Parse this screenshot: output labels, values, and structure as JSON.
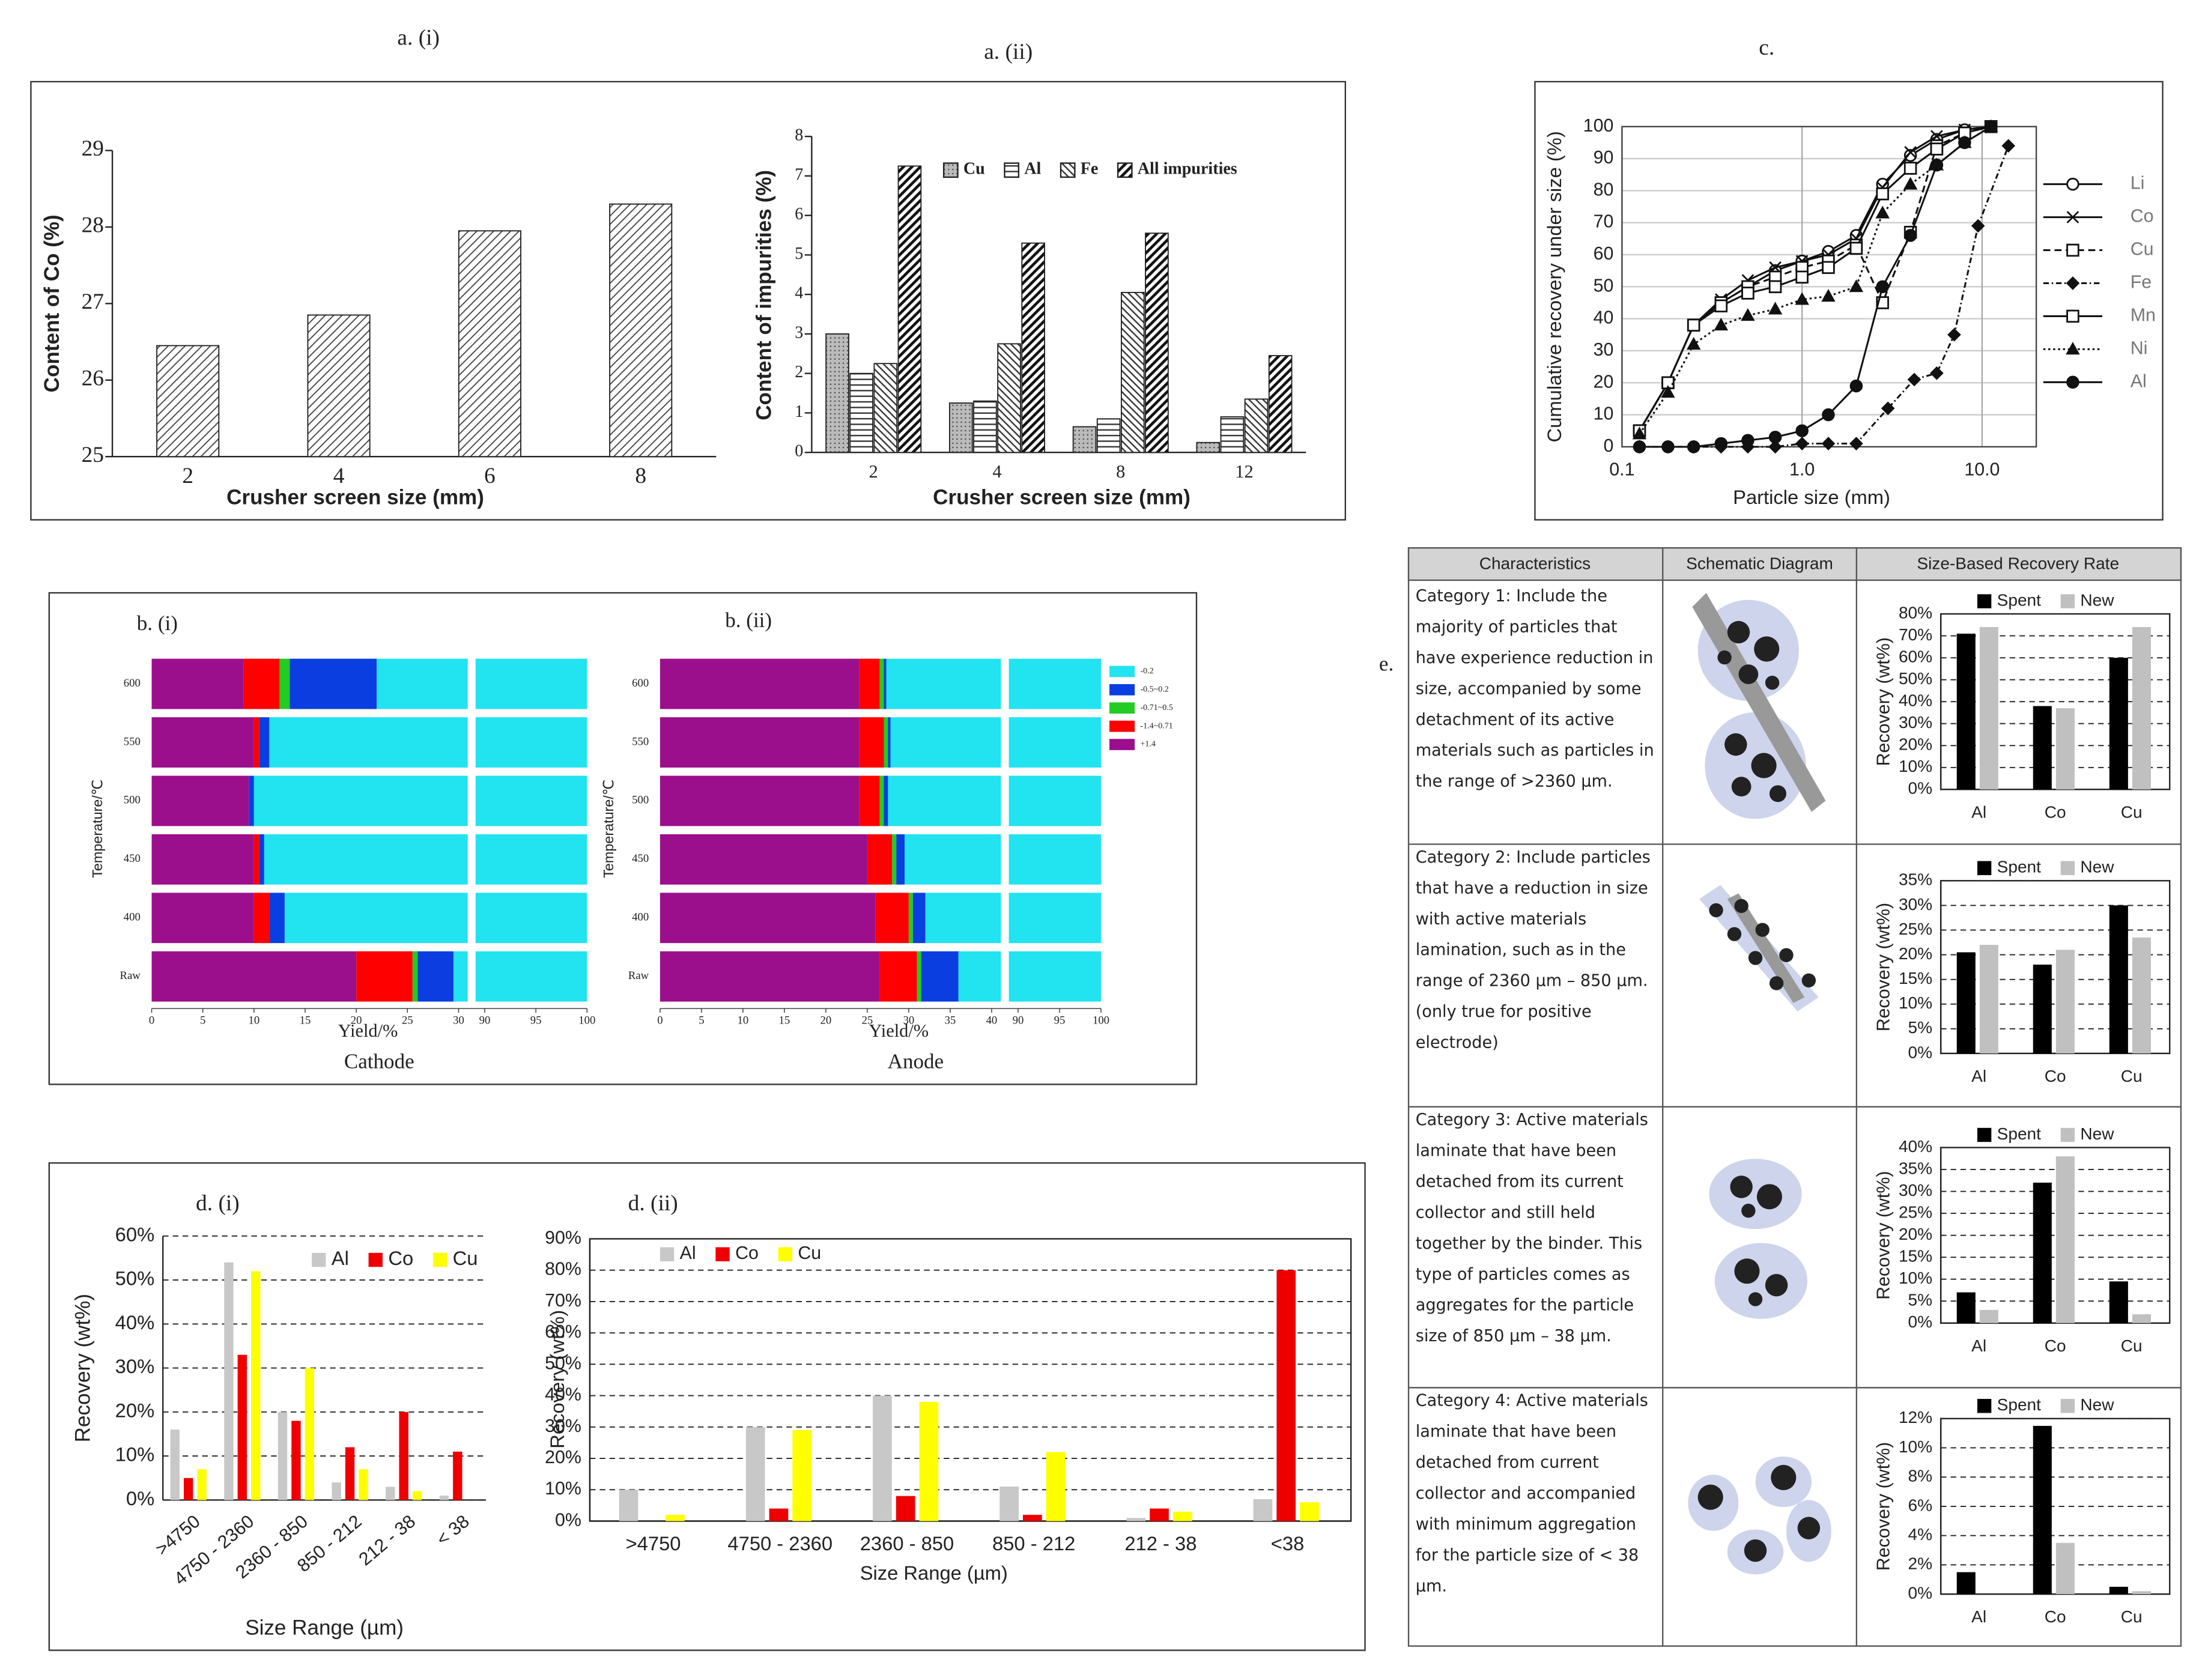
{
  "chart_data": [
    {
      "type": "bar",
      "title": "a.  (i)",
      "x_label": "Crusher screen size (mm)",
      "y_label": "Content of Co (%)",
      "categories": [
        "2",
        "4",
        "6",
        "8"
      ],
      "values": [
        26.45,
        26.85,
        27.95,
        28.3
      ],
      "hatch": "diag",
      "ylim": [
        25,
        29
      ],
      "yticks": [
        25,
        26,
        27,
        28,
        29
      ],
      "grid": false
    },
    {
      "type": "bar",
      "title": "a.  (ii)",
      "x_label": "Crusher screen size (mm)",
      "y_label": "Content of impurities (%)",
      "categories": [
        "2",
        "4",
        "8",
        "12"
      ],
      "series": [
        {
          "name": "Cu",
          "hatch": "dots",
          "values": [
            3.0,
            1.25,
            0.65,
            0.25
          ]
        },
        {
          "name": "Al",
          "hatch": "horiz",
          "values": [
            2.0,
            1.3,
            0.85,
            0.9
          ]
        },
        {
          "name": "Fe",
          "hatch": "back",
          "values": [
            2.25,
            2.75,
            4.05,
            1.35
          ]
        },
        {
          "name": "All impurities",
          "hatch": "bold",
          "values": [
            7.25,
            5.3,
            5.55,
            2.45
          ]
        }
      ],
      "ylim": [
        0,
        8
      ],
      "yticks": [
        0,
        1,
        2,
        3,
        4,
        5,
        6,
        7,
        8
      ],
      "grid": false,
      "legend": "top"
    },
    {
      "type": "line",
      "title": "c.",
      "x_label": "Particle size (mm)",
      "y_label": "Cumulative recovery under size (%)",
      "xscale": "log",
      "xlim": [
        0.1,
        20
      ],
      "xticks": [
        {
          "value": 0.1,
          "label": "0.1"
        },
        {
          "value": 1,
          "label": "1.0"
        },
        {
          "value": 10,
          "label": "10.0"
        }
      ],
      "ylim": [
        0,
        100
      ],
      "yticks": [
        0,
        10,
        20,
        30,
        40,
        50,
        60,
        70,
        80,
        90,
        100
      ],
      "grid": true,
      "legend": "right",
      "series": [
        {
          "name": "Li",
          "marker": "circle-open",
          "line": "solid",
          "x": [
            0.125,
            0.18,
            0.25,
            0.355,
            0.5,
            0.71,
            1.0,
            1.4,
            2.0,
            2.8,
            4.0,
            5.6,
            8.0,
            11.2
          ],
          "values": [
            5,
            20,
            38,
            45,
            50,
            55,
            58,
            61,
            66,
            82,
            91,
            96,
            99,
            100
          ]
        },
        {
          "name": "Co",
          "marker": "cross",
          "line": "solid",
          "x": [
            0.125,
            0.18,
            0.25,
            0.355,
            0.5,
            0.71,
            1.0,
            1.4,
            2.0,
            2.8,
            4.0,
            5.6,
            8.0,
            11.2
          ],
          "values": [
            5,
            20,
            38,
            46,
            52,
            56,
            58,
            60,
            65,
            81,
            92,
            97,
            99,
            100
          ]
        },
        {
          "name": "Cu",
          "marker": "square-open",
          "line": "dashed",
          "x": [
            0.125,
            0.18,
            0.25,
            0.355,
            0.5,
            0.71,
            1.0,
            1.4,
            2.0,
            2.8,
            4.0,
            5.6,
            8.0,
            11.2
          ],
          "values": [
            5,
            20,
            38,
            45,
            50,
            53,
            56,
            58,
            63,
            45,
            67,
            94,
            98,
            100
          ]
        },
        {
          "name": "Fe",
          "marker": "diamond",
          "line": "dashdot",
          "x": [
            0.125,
            0.18,
            0.25,
            0.355,
            0.5,
            0.71,
            1.0,
            1.4,
            2.0,
            3.0,
            4.2,
            5.6,
            7.0,
            9.5,
            14.0
          ],
          "values": [
            0,
            0,
            0,
            0,
            0,
            0,
            1,
            1,
            1,
            12,
            21,
            23,
            35,
            69,
            94
          ]
        },
        {
          "name": "Mn",
          "marker": "square-open",
          "line": "solid",
          "x": [
            0.125,
            0.18,
            0.25,
            0.355,
            0.5,
            0.71,
            1.0,
            1.4,
            2.0,
            2.8,
            4.0,
            5.6,
            8.0,
            11.2
          ],
          "values": [
            5,
            20,
            38,
            44,
            48,
            50,
            53,
            56,
            62,
            79,
            87,
            93,
            98,
            100
          ]
        },
        {
          "name": "Ni",
          "marker": "triangle",
          "line": "dotted",
          "x": [
            0.125,
            0.18,
            0.25,
            0.355,
            0.5,
            0.71,
            1.0,
            1.4,
            2.0,
            2.8,
            4.0,
            5.6,
            8.0,
            11.2
          ],
          "values": [
            4,
            17,
            32,
            38,
            41,
            43,
            46,
            47,
            50,
            73,
            82,
            88,
            95,
            100
          ]
        },
        {
          "name": "Al",
          "marker": "circle",
          "line": "solid",
          "x": [
            0.125,
            0.18,
            0.25,
            0.355,
            0.5,
            0.71,
            1.0,
            1.4,
            2.0,
            2.8,
            4.0,
            5.6,
            8.0,
            11.2
          ],
          "values": [
            0,
            0,
            0,
            1,
            2,
            3,
            5,
            10,
            19,
            50,
            66,
            88,
            95,
            100
          ]
        }
      ]
    },
    {
      "type": "stacked_barh",
      "title": "b. (i)",
      "x_label": "Yield/%",
      "y_label": "Temperature/℃",
      "caption": "Cathode",
      "categories": [
        "600",
        "550",
        "500",
        "450",
        "400",
        "Raw"
      ],
      "xlim": [
        0,
        100
      ],
      "xbreak": [
        30,
        90
      ],
      "xticks": [
        0,
        5,
        10,
        15,
        20,
        25,
        30,
        90,
        95,
        100
      ],
      "series": [
        {
          "color": "#9b0f8c",
          "values": [
            9,
            10,
            9.5,
            10,
            10,
            20
          ]
        },
        {
          "color": "#ff0000",
          "values": [
            3.5,
            0.5,
            0,
            0.5,
            1.5,
            5.5
          ]
        },
        {
          "color": "#22cc22",
          "values": [
            1,
            0,
            0,
            0,
            0,
            0.5
          ]
        },
        {
          "color": "#0a3ee0",
          "values": [
            8.5,
            1,
            0.5,
            0.5,
            1.5,
            3.5
          ]
        },
        {
          "color": "#22e3f0",
          "values": [
            78,
            88.5,
            90,
            89,
            87,
            70.5
          ]
        }
      ]
    },
    {
      "type": "stacked_barh",
      "title": "b. (ii)",
      "x_label": "Yield/%",
      "y_label": "Temperature/℃",
      "caption": "Anode",
      "categories": [
        "600",
        "550",
        "500",
        "450",
        "400",
        "Raw"
      ],
      "xlim": [
        0,
        100
      ],
      "xbreak": [
        40,
        90
      ],
      "xticks": [
        0,
        5,
        10,
        15,
        20,
        25,
        30,
        35,
        40,
        90,
        95,
        100
      ],
      "legend": "right",
      "series": [
        {
          "name": "+1.4",
          "color": "#9b0f8c",
          "values": [
            24,
            24,
            24,
            25,
            26,
            26.5
          ]
        },
        {
          "name": "-1.4~0.71",
          "color": "#ff0000",
          "values": [
            2.5,
            3,
            2.5,
            3,
            4,
            4.5
          ]
        },
        {
          "name": "-0.71~0.5",
          "color": "#22cc22",
          "values": [
            0.5,
            0.5,
            0.5,
            0.5,
            0.5,
            0.5
          ]
        },
        {
          "name": "-0.5~0.2",
          "color": "#0a3ee0",
          "values": [
            0.3,
            0.3,
            0.5,
            1,
            1.5,
            4.5
          ]
        },
        {
          "name": "-0.2",
          "color": "#22e3f0",
          "values": [
            72.7,
            72.2,
            72.5,
            70.5,
            68,
            64
          ]
        }
      ]
    },
    {
      "type": "bar",
      "title": "d. (i)",
      "x_label": "Size Range (µm)",
      "y_label": "Recovery (wt%)",
      "categories": [
        ">4750",
        "4750 - 2360",
        "2360 - 850",
        "850 - 212",
        "212 - 38",
        "< 38"
      ],
      "series": [
        {
          "name": "Al",
          "color": "#c8c8c8",
          "values": [
            16,
            54,
            20,
            4,
            3,
            1
          ]
        },
        {
          "name": "Co",
          "color": "#ee0000",
          "values": [
            5,
            33,
            18,
            12,
            20,
            11
          ]
        },
        {
          "name": "Cu",
          "color": "#ffff00",
          "values": [
            7,
            52,
            30,
            7,
            2,
            0
          ]
        }
      ],
      "ylim": [
        0,
        60
      ],
      "yticks": [
        {
          "value": 0,
          "label": "0%"
        },
        {
          "value": 10,
          "label": "10%"
        },
        {
          "value": 20,
          "label": "20%"
        },
        {
          "value": 30,
          "label": "30%"
        },
        {
          "value": 40,
          "label": "40%"
        },
        {
          "value": 50,
          "label": "50%"
        },
        {
          "value": 60,
          "label": "60%"
        }
      ],
      "grid": true,
      "legend": "top"
    },
    {
      "type": "bar",
      "title": "d. (ii)",
      "x_label": "Size Range (µm)",
      "y_label": "Recovery (wt%)",
      "categories": [
        ">4750",
        "4750 - 2360",
        "2360 - 850",
        "850 - 212",
        "212 - 38",
        "<38"
      ],
      "series": [
        {
          "name": "Al",
          "color": "#c8c8c8",
          "values": [
            10,
            30,
            40,
            11,
            1,
            7
          ]
        },
        {
          "name": "Co",
          "color": "#ee0000",
          "values": [
            0,
            4,
            8,
            2,
            4,
            80
          ]
        },
        {
          "name": "Cu",
          "color": "#ffff00",
          "values": [
            2,
            29,
            38,
            22,
            3,
            6
          ]
        }
      ],
      "ylim": [
        0,
        90
      ],
      "yticks": [
        {
          "value": 0,
          "label": "0%"
        },
        {
          "value": 10,
          "label": "10%"
        },
        {
          "value": 20,
          "label": "20%"
        },
        {
          "value": 30,
          "label": "30%"
        },
        {
          "value": 40,
          "label": "40%"
        },
        {
          "value": 50,
          "label": "50%"
        },
        {
          "value": 60,
          "label": "60%"
        },
        {
          "value": 70,
          "label": "70%"
        },
        {
          "value": 80,
          "label": "80%"
        },
        {
          "value": 90,
          "label": "90%"
        }
      ],
      "grid": true,
      "legend": "top"
    },
    {
      "type": "bar",
      "y_label": "Recovery (wt%)",
      "categories": [
        "Al",
        "Co",
        "Cu"
      ],
      "series": [
        {
          "name": "Spent",
          "color": "#000000",
          "values": [
            71,
            38,
            60
          ]
        },
        {
          "name": "New",
          "color": "#c0c0c0",
          "values": [
            74,
            37,
            74
          ]
        }
      ],
      "ylim": [
        0,
        80
      ],
      "yticks": [
        {
          "value": 0,
          "label": "0%"
        },
        {
          "value": 10,
          "label": "10%"
        },
        {
          "value": 20,
          "label": "20%"
        },
        {
          "value": 30,
          "label": "30%"
        },
        {
          "value": 40,
          "label": "40%"
        },
        {
          "value": 50,
          "label": "50%"
        },
        {
          "value": 60,
          "label": "60%"
        },
        {
          "value": 70,
          "label": "70%"
        },
        {
          "value": 80,
          "label": "80%"
        }
      ],
      "grid": true,
      "legend": "top"
    },
    {
      "type": "bar",
      "y_label": "Recovery (wt%)",
      "categories": [
        "Al",
        "Co",
        "Cu"
      ],
      "series": [
        {
          "name": "Spent",
          "color": "#000000",
          "values": [
            20.5,
            18,
            30
          ]
        },
        {
          "name": "New",
          "color": "#c0c0c0",
          "values": [
            22,
            21,
            23.5
          ]
        }
      ],
      "ylim": [
        0,
        35
      ],
      "yticks": [
        {
          "value": 0,
          "label": "0%"
        },
        {
          "value": 5,
          "label": "5%"
        },
        {
          "value": 10,
          "label": "10%"
        },
        {
          "value": 15,
          "label": "15%"
        },
        {
          "value": 20,
          "label": "20%"
        },
        {
          "value": 25,
          "label": "25%"
        },
        {
          "value": 30,
          "label": "30%"
        },
        {
          "value": 35,
          "label": "35%"
        }
      ],
      "grid": true,
      "legend": "top"
    },
    {
      "type": "bar",
      "y_label": "Recovery (wt%)",
      "categories": [
        "Al",
        "Co",
        "Cu"
      ],
      "series": [
        {
          "name": "Spent",
          "color": "#000000",
          "values": [
            7,
            32,
            9.5
          ]
        },
        {
          "name": "New",
          "color": "#c0c0c0",
          "values": [
            3,
            38,
            2
          ]
        }
      ],
      "ylim": [
        0,
        40
      ],
      "yticks": [
        {
          "value": 0,
          "label": "0%"
        },
        {
          "value": 5,
          "label": "5%"
        },
        {
          "value": 10,
          "label": "10%"
        },
        {
          "value": 15,
          "label": "15%"
        },
        {
          "value": 20,
          "label": "20%"
        },
        {
          "value": 25,
          "label": "25%"
        },
        {
          "value": 30,
          "label": "30%"
        },
        {
          "value": 35,
          "label": "35%"
        },
        {
          "value": 40,
          "label": "40%"
        }
      ],
      "grid": true,
      "legend": "top"
    },
    {
      "type": "bar",
      "y_label": "Recovery (wt%)",
      "categories": [
        "Al",
        "Co",
        "Cu"
      ],
      "series": [
        {
          "name": "Spent",
          "color": "#000000",
          "values": [
            1.5,
            11.5,
            0.5
          ]
        },
        {
          "name": "New",
          "color": "#c0c0c0",
          "values": [
            0,
            3.5,
            0.2
          ]
        }
      ],
      "ylim": [
        0,
        12
      ],
      "yticks": [
        {
          "value": 0,
          "label": "0%"
        },
        {
          "value": 2,
          "label": "2%"
        },
        {
          "value": 4,
          "label": "4%"
        },
        {
          "value": 6,
          "label": "6%"
        },
        {
          "value": 8,
          "label": "8%"
        },
        {
          "value": 10,
          "label": "10%"
        },
        {
          "value": 12,
          "label": "12%"
        }
      ],
      "grid": true,
      "legend": "top"
    }
  ],
  "table": {
    "label": "e.",
    "headers": [
      "Characteristics",
      "Schematic Diagram",
      "Size-Based Recovery Rate"
    ],
    "rows": [
      "Category 1: Include the majority of particles that have experience reduction in size, accompanied by some detachment of its active materials such as particles in the range of >2360 µm.",
      "Category 2: Include particles that have a reduction in size with active materials lamination, such as in the range of 2360 µm – 850 µm. (only true for positive electrode)",
      "Category 3: Active materials laminate that have been detached from its current collector and still held together by the binder. This type of particles comes as aggregates for the particle size of 850 µm – 38 µm.",
      "Category 4: Active materials laminate that have been detached from current collector and accompanied with minimum aggregation for the particle size of < 38 µm."
    ]
  }
}
